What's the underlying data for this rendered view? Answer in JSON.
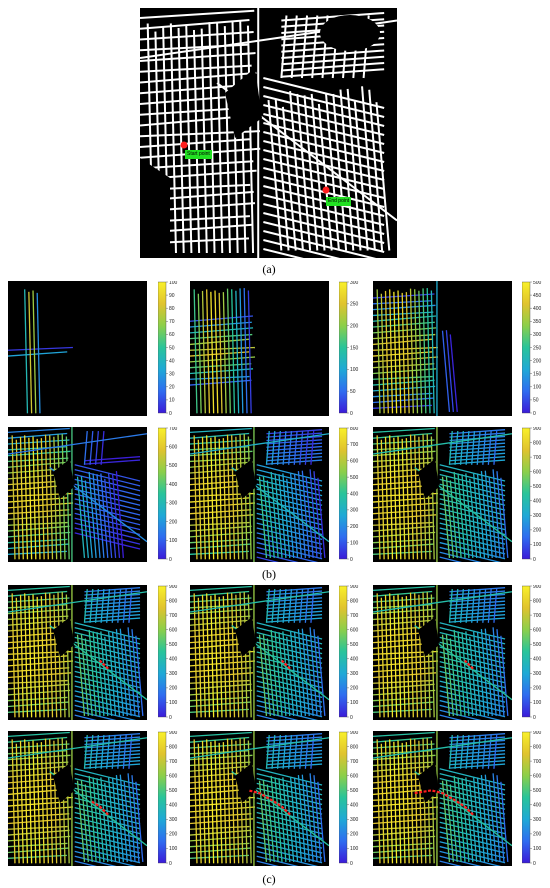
{
  "captions": {
    "a": "(a)",
    "b": "(b)",
    "c": "(c)"
  },
  "roadmap": {
    "labels": [
      "Start point",
      "End point"
    ],
    "marker_color": "#ff1e1e",
    "label_color": "#22e022"
  },
  "colormap": [
    "#3b1bd8",
    "#2f6cf0",
    "#1fa9d6",
    "#29c49a",
    "#8ccf4a",
    "#e0c32e",
    "#f9f02a"
  ],
  "path_color": "#ff1e1e",
  "section_b": {
    "panels": [
      {
        "max": 100,
        "ticks": [
          "100",
          "90",
          "80",
          "70",
          "60",
          "50",
          "40",
          "30",
          "20",
          "10",
          "0"
        ],
        "radius": 0.07
      },
      {
        "max": 300,
        "ticks": [
          "300",
          "250",
          "200",
          "150",
          "100",
          "50",
          "0"
        ],
        "radius": 0.28
      },
      {
        "max": 500,
        "ticks": [
          "500",
          "450",
          "400",
          "350",
          "300",
          "250",
          "200",
          "150",
          "100",
          "50",
          "0"
        ],
        "radius": 0.45
      },
      {
        "max": 700,
        "ticks": [
          "700",
          "600",
          "500",
          "400",
          "300",
          "200",
          "100",
          "0"
        ],
        "radius": 0.65
      },
      {
        "max": 800,
        "ticks": [
          "800",
          "700",
          "600",
          "500",
          "400",
          "300",
          "200",
          "100",
          "0"
        ],
        "radius": 0.82
      },
      {
        "max": 900,
        "ticks": [
          "900",
          "800",
          "700",
          "600",
          "500",
          "400",
          "300",
          "200",
          "100",
          "0"
        ],
        "radius": 0.95
      }
    ]
  },
  "section_c": {
    "panels": [
      {
        "ticks": [
          "900",
          "800",
          "700",
          "600",
          "500",
          "400",
          "300",
          "200",
          "100",
          "0"
        ],
        "path_len": 0.1
      },
      {
        "ticks": [
          "900",
          "800",
          "700",
          "600",
          "500",
          "400",
          "300",
          "200",
          "100",
          "0"
        ],
        "path_len": 0.25
      },
      {
        "ticks": [
          "900",
          "800",
          "700",
          "600",
          "500",
          "400",
          "300",
          "200",
          "100",
          "0"
        ],
        "path_len": 0.4
      },
      {
        "ticks": [
          "900",
          "800",
          "700",
          "600",
          "500",
          "400",
          "300",
          "200",
          "100",
          "0"
        ],
        "path_len": 0.55
      },
      {
        "ticks": [
          "900",
          "800",
          "700",
          "600",
          "500",
          "400",
          "300",
          "200",
          "100",
          "0"
        ],
        "path_len": 0.75
      },
      {
        "ticks": [
          "900",
          "800",
          "700",
          "600",
          "500",
          "400",
          "300",
          "200",
          "100",
          "0"
        ],
        "path_len": 1.0
      }
    ]
  }
}
